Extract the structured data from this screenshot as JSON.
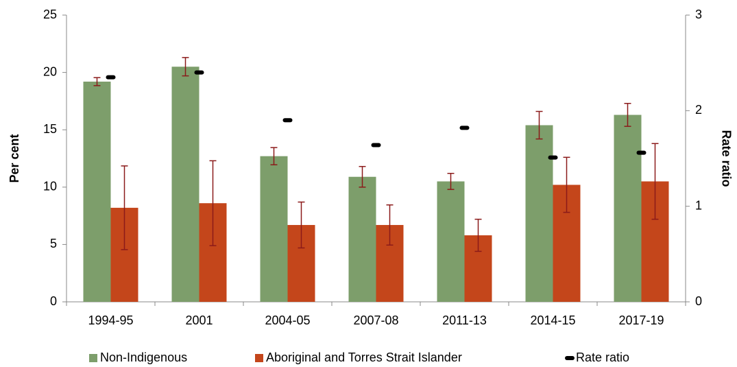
{
  "chart_data": {
    "type": "bar",
    "categories": [
      "1994-95",
      "2001",
      "2004-05",
      "2007-08",
      "2011-13",
      "2014-15",
      "2017-19"
    ],
    "series": [
      {
        "name": "Non-Indigenous",
        "color": "#7d9e6b",
        "values": [
          19.2,
          20.5,
          12.7,
          10.9,
          10.5,
          15.4,
          16.3
        ],
        "errors": [
          0.35,
          0.8,
          0.75,
          0.9,
          0.7,
          1.2,
          1.0
        ]
      },
      {
        "name": "Aboriginal and Torres Strait Islander",
        "color": "#c4461b",
        "values": [
          8.2,
          8.6,
          6.7,
          6.7,
          5.8,
          10.2,
          10.5
        ],
        "errors": [
          3.65,
          3.7,
          2.0,
          1.75,
          1.4,
          2.4,
          3.3
        ]
      },
      {
        "name": "Rate ratio",
        "color": "#000000",
        "axis": "y2",
        "values": [
          2.35,
          2.4,
          1.9,
          1.64,
          1.82,
          1.51,
          1.56
        ]
      }
    ],
    "error_color": "#8b1a1a",
    "ylabel": "Per cent",
    "y2label": "Rate ratio",
    "ylim": [
      0,
      25
    ],
    "yticks": [
      0,
      5,
      10,
      15,
      20,
      25
    ],
    "y2lim": [
      0,
      3
    ],
    "y2ticks": [
      0,
      1,
      2,
      3
    ],
    "legend": "bottom"
  }
}
